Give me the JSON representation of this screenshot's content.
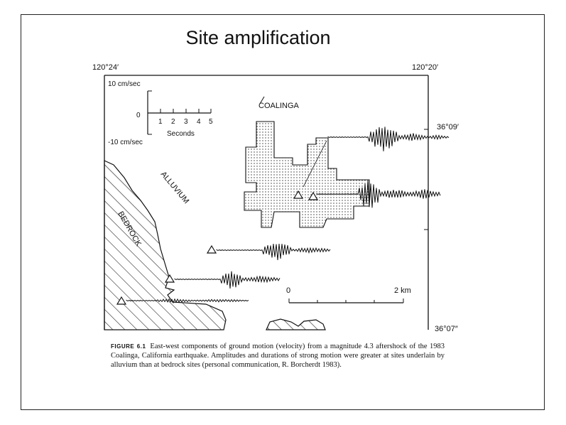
{
  "title": "Site amplification",
  "map": {
    "coords": {
      "top_left": "120°24′",
      "top_right": "120°20′",
      "right_upper": "36°09′",
      "right_lower": "36°07″"
    },
    "scale_inset": {
      "top_label": "10 cm/sec",
      "zero_label": "0",
      "bottom_label": "-10 cm/sec",
      "ticks": [
        "1",
        "2",
        "3",
        "4",
        "5"
      ],
      "unit_label": "Seconds"
    },
    "labels": {
      "town": "COALINGA",
      "alluvium": "ALLUVIUM",
      "bedrock": "BEDROCK"
    },
    "distance_scale": {
      "start": "0",
      "end": "2 km"
    }
  },
  "caption": {
    "label": "FIGURE 6.1",
    "text": "East-west components of ground motion (velocity) from a magnitude 4.3 aftershock of the 1983 Coalinga, California earthquake. Amplitudes and durations of strong motion were greater at sites underlain by alluvium than at bedrock sites (personal communication, R. Borcherdt 1983)."
  }
}
